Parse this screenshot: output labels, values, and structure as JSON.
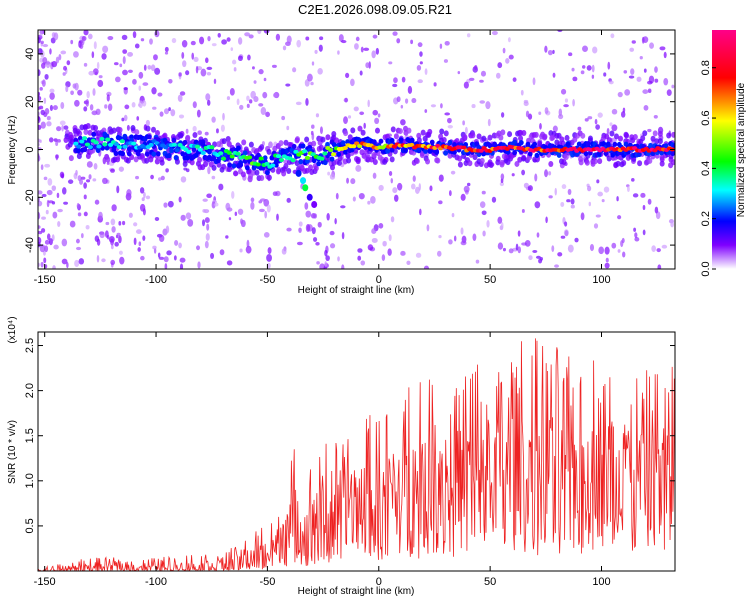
{
  "title": "C2E1.2026.098.09.05.R21",
  "chart_data": [
    {
      "type": "heatmap",
      "name": "spectrogram",
      "xlabel": "Height of straight line (km)",
      "ylabel": "Frequency (Hz)",
      "xlim": [
        -153,
        133
      ],
      "ylim": [
        -50,
        50
      ],
      "xticks": [
        -150,
        -100,
        -50,
        0,
        50,
        100
      ],
      "xtick_labels": [
        "-150",
        "-100",
        "-50",
        "0",
        "50",
        "100"
      ],
      "yticks": [
        -40,
        -20,
        0,
        20,
        40
      ],
      "ytick_labels": [
        "-40",
        "-20",
        "0",
        "20",
        "40"
      ],
      "colorbar": {
        "label": "Normalized spectral amplitude",
        "range": [
          0,
          0.95
        ],
        "ticks": [
          0.0,
          0.2,
          0.4,
          0.6,
          0.8
        ],
        "tick_labels": [
          "0.0",
          "0.2",
          "0.4",
          "0.6",
          "0.8"
        ],
        "colors": [
          "#ffffff",
          "#7f00ff",
          "#0000ff",
          "#00ffff",
          "#00ff00",
          "#ffff00",
          "#ff0000",
          "#ff0088"
        ]
      },
      "ridge": {
        "x": [
          -135,
          -125,
          -115,
          -105,
          -95,
          -85,
          -75,
          -65,
          -55,
          -50,
          -45,
          -40,
          -35,
          -30,
          -25,
          -20,
          -15,
          -10,
          -5,
          0,
          10,
          20,
          30,
          40,
          50,
          60,
          70,
          80,
          90,
          100,
          110,
          120,
          130
        ],
        "freq": [
          3,
          3,
          2,
          2,
          1,
          0,
          -1,
          -3,
          -5,
          -6,
          -4,
          -3,
          -2,
          -3,
          -2,
          0,
          1,
          2,
          2,
          1,
          2,
          1,
          1,
          0,
          0,
          1,
          0,
          0,
          0,
          0,
          0,
          0,
          0
        ],
        "amplitude": [
          0.35,
          0.35,
          0.35,
          0.3,
          0.3,
          0.35,
          0.4,
          0.45,
          0.5,
          0.45,
          0.4,
          0.4,
          0.45,
          0.5,
          0.5,
          0.6,
          0.7,
          0.75,
          0.8,
          0.7,
          0.8,
          0.85,
          0.85,
          0.9,
          0.9,
          0.85,
          0.9,
          0.9,
          0.95,
          0.95,
          0.9,
          0.95,
          0.9
        ]
      },
      "side_branch": {
        "x": [
          -36,
          -34,
          -33,
          -31,
          -29
        ],
        "freq": [
          -10,
          -13,
          -16,
          -20,
          -23
        ],
        "amplitude": [
          0.2,
          0.3,
          0.4,
          0.15,
          0.1
        ]
      }
    },
    {
      "type": "line",
      "name": "snr",
      "xlabel": "Height of straight line (km)",
      "ylabel": "SNR (10 * v/v)",
      "scale_label": "(x10⁴)",
      "xlim": [
        -153,
        133
      ],
      "ylim": [
        0,
        2.65
      ],
      "xticks": [
        -150,
        -100,
        -50,
        0,
        50,
        100
      ],
      "xtick_labels": [
        "-150",
        "-100",
        "-50",
        "0",
        "50",
        "100"
      ],
      "yticks": [
        0.5,
        1.0,
        1.5,
        2.0,
        2.5
      ],
      "ytick_labels": [
        "0.5",
        "1.0",
        "1.5",
        "2.0",
        "2.5"
      ],
      "line_color": "#ee2222",
      "envelope": {
        "x": [
          -153,
          -130,
          -100,
          -80,
          -70,
          -60,
          -50,
          -45,
          -40,
          -36,
          -34,
          -30,
          -25,
          -20,
          -10,
          0,
          10,
          20,
          30,
          40,
          50,
          60,
          70,
          80,
          90,
          100,
          110,
          120,
          130
        ],
        "base": [
          0.0,
          0.01,
          0.02,
          0.02,
          0.03,
          0.06,
          0.1,
          0.15,
          0.25,
          0.3,
          0.25,
          0.3,
          0.4,
          0.45,
          0.5,
          0.55,
          0.6,
          0.65,
          0.7,
          0.8,
          0.85,
          0.9,
          0.85,
          0.85,
          0.9,
          0.9,
          0.9,
          0.85,
          0.85
        ],
        "peak": [
          0.03,
          0.15,
          0.15,
          0.2,
          0.2,
          0.35,
          0.55,
          0.8,
          1.15,
          1.55,
          1.0,
          1.2,
          1.4,
          1.5,
          1.65,
          1.85,
          1.95,
          2.25,
          2.2,
          2.3,
          2.4,
          2.55,
          2.65,
          2.55,
          2.4,
          2.4,
          2.35,
          2.3,
          2.4
        ]
      }
    }
  ]
}
